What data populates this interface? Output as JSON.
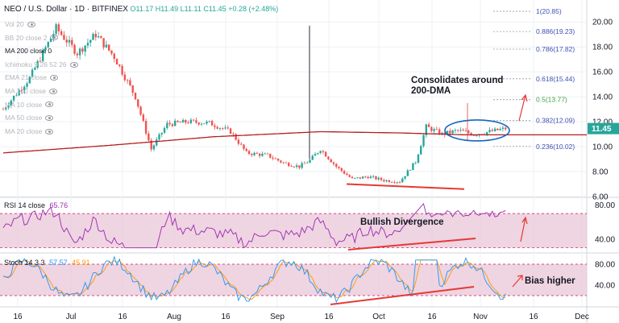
{
  "header": {
    "symbol": "NEO / U.S. Dollar · 1D · BITFINEX",
    "ohlc": "O11.17 H11.49 L11.11 C11.45 +0.28 (+2.48%)"
  },
  "indicators": [
    {
      "label": "Vol 20",
      "active": false
    },
    {
      "label": "BB 20 close 2",
      "active": false
    },
    {
      "label": "MA 200 close 0",
      "active": true
    },
    {
      "label": "Ichimoku 9 26 52 26",
      "active": false
    },
    {
      "label": "EMA 21 close",
      "active": false
    },
    {
      "label": "MA 100 close",
      "active": false
    },
    {
      "label": "MA 10 close",
      "active": false
    },
    {
      "label": "MA 50 close",
      "active": false
    },
    {
      "label": "MA 20 close",
      "active": false
    }
  ],
  "rsi": {
    "title": "RSI 14 close",
    "value": "65.76",
    "title_color": "#131722",
    "value_color": "#9c27b0"
  },
  "stoch": {
    "title": "Stoch 14 3 3",
    "k_value": "57.57",
    "d_value": "45.91",
    "k_color": "#2196f3",
    "d_color": "#ff9800"
  },
  "annotations": {
    "consolidation": "Consolidates around\n200-DMA",
    "divergence": "Bullish Divergence",
    "bias": "Bias higher"
  },
  "colors": {
    "up": "#26a69a",
    "down": "#ef5350",
    "ma200": "#b71c1c",
    "rsi_line": "#9c27b0",
    "band": "#e9c5d8",
    "grid": "#eef0f3"
  },
  "chart_data": [
    {
      "type": "candlestick",
      "title": "NEO / U.S. Dollar · 1D · BITFINEX",
      "y_ticks": [
        "20.00",
        "18.00",
        "16.00",
        "14.00",
        "12.00",
        "10.00",
        "8.00",
        "6.00"
      ],
      "y_range": [
        6.0,
        21.5
      ],
      "x_ticks": [
        "16",
        "Jul",
        "16",
        "Aug",
        "16",
        "Sep",
        "16",
        "Oct",
        "16",
        "Nov",
        "16",
        "Dec"
      ],
      "last_price": "11.45",
      "fib_levels": [
        {
          "label": "1(20.85)",
          "value": 20.85
        },
        {
          "label": "0.886(19.23)",
          "value": 19.23
        },
        {
          "label": "0.786(17.82)",
          "value": 17.82
        },
        {
          "label": "0.618(15.44)",
          "value": 15.44
        },
        {
          "label": "0.5(13.77)",
          "value": 13.77
        },
        {
          "label": "0.382(12.09)",
          "value": 12.09
        },
        {
          "label": "0.236(10.02)",
          "value": 10.02
        }
      ],
      "close_series_path": [
        [
          0,
          13.0
        ],
        [
          10,
          15.5
        ],
        [
          20,
          19.5
        ],
        [
          28,
          17.5
        ],
        [
          35,
          19.0
        ],
        [
          42,
          17.2
        ],
        [
          50,
          14.0
        ],
        [
          56,
          9.8
        ],
        [
          62,
          11.8
        ],
        [
          70,
          12.0
        ],
        [
          78,
          11.9
        ],
        [
          86,
          11.2
        ],
        [
          92,
          9.5
        ],
        [
          100,
          9.3
        ],
        [
          106,
          8.7
        ],
        [
          112,
          8.4
        ],
        [
          116,
          8.9
        ],
        [
          120,
          9.8
        ],
        [
          126,
          8.4
        ],
        [
          132,
          7.4
        ],
        [
          138,
          7.6
        ],
        [
          144,
          7.3
        ],
        [
          150,
          7.2
        ],
        [
          156,
          8.8
        ],
        [
          160,
          11.6
        ],
        [
          166,
          11.0
        ],
        [
          172,
          11.3
        ],
        [
          178,
          11.0
        ],
        [
          184,
          11.2
        ],
        [
          190,
          11.45
        ]
      ],
      "ma200_path": [
        [
          0,
          9.5
        ],
        [
          40,
          10.1
        ],
        [
          80,
          10.8
        ],
        [
          120,
          11.2
        ],
        [
          150,
          11.1
        ],
        [
          175,
          10.95
        ],
        [
          190,
          10.95
        ]
      ],
      "rsi": {
        "y_ticks": [
          "80.00",
          "40.00"
        ],
        "y_range": [
          25,
          88
        ],
        "last": 65.76
      },
      "stoch": {
        "y_ticks": [
          "80.00",
          "40.00"
        ],
        "y_range": [
          0,
          100
        ],
        "k_last": 57.57,
        "d_last": 45.91
      }
    }
  ]
}
